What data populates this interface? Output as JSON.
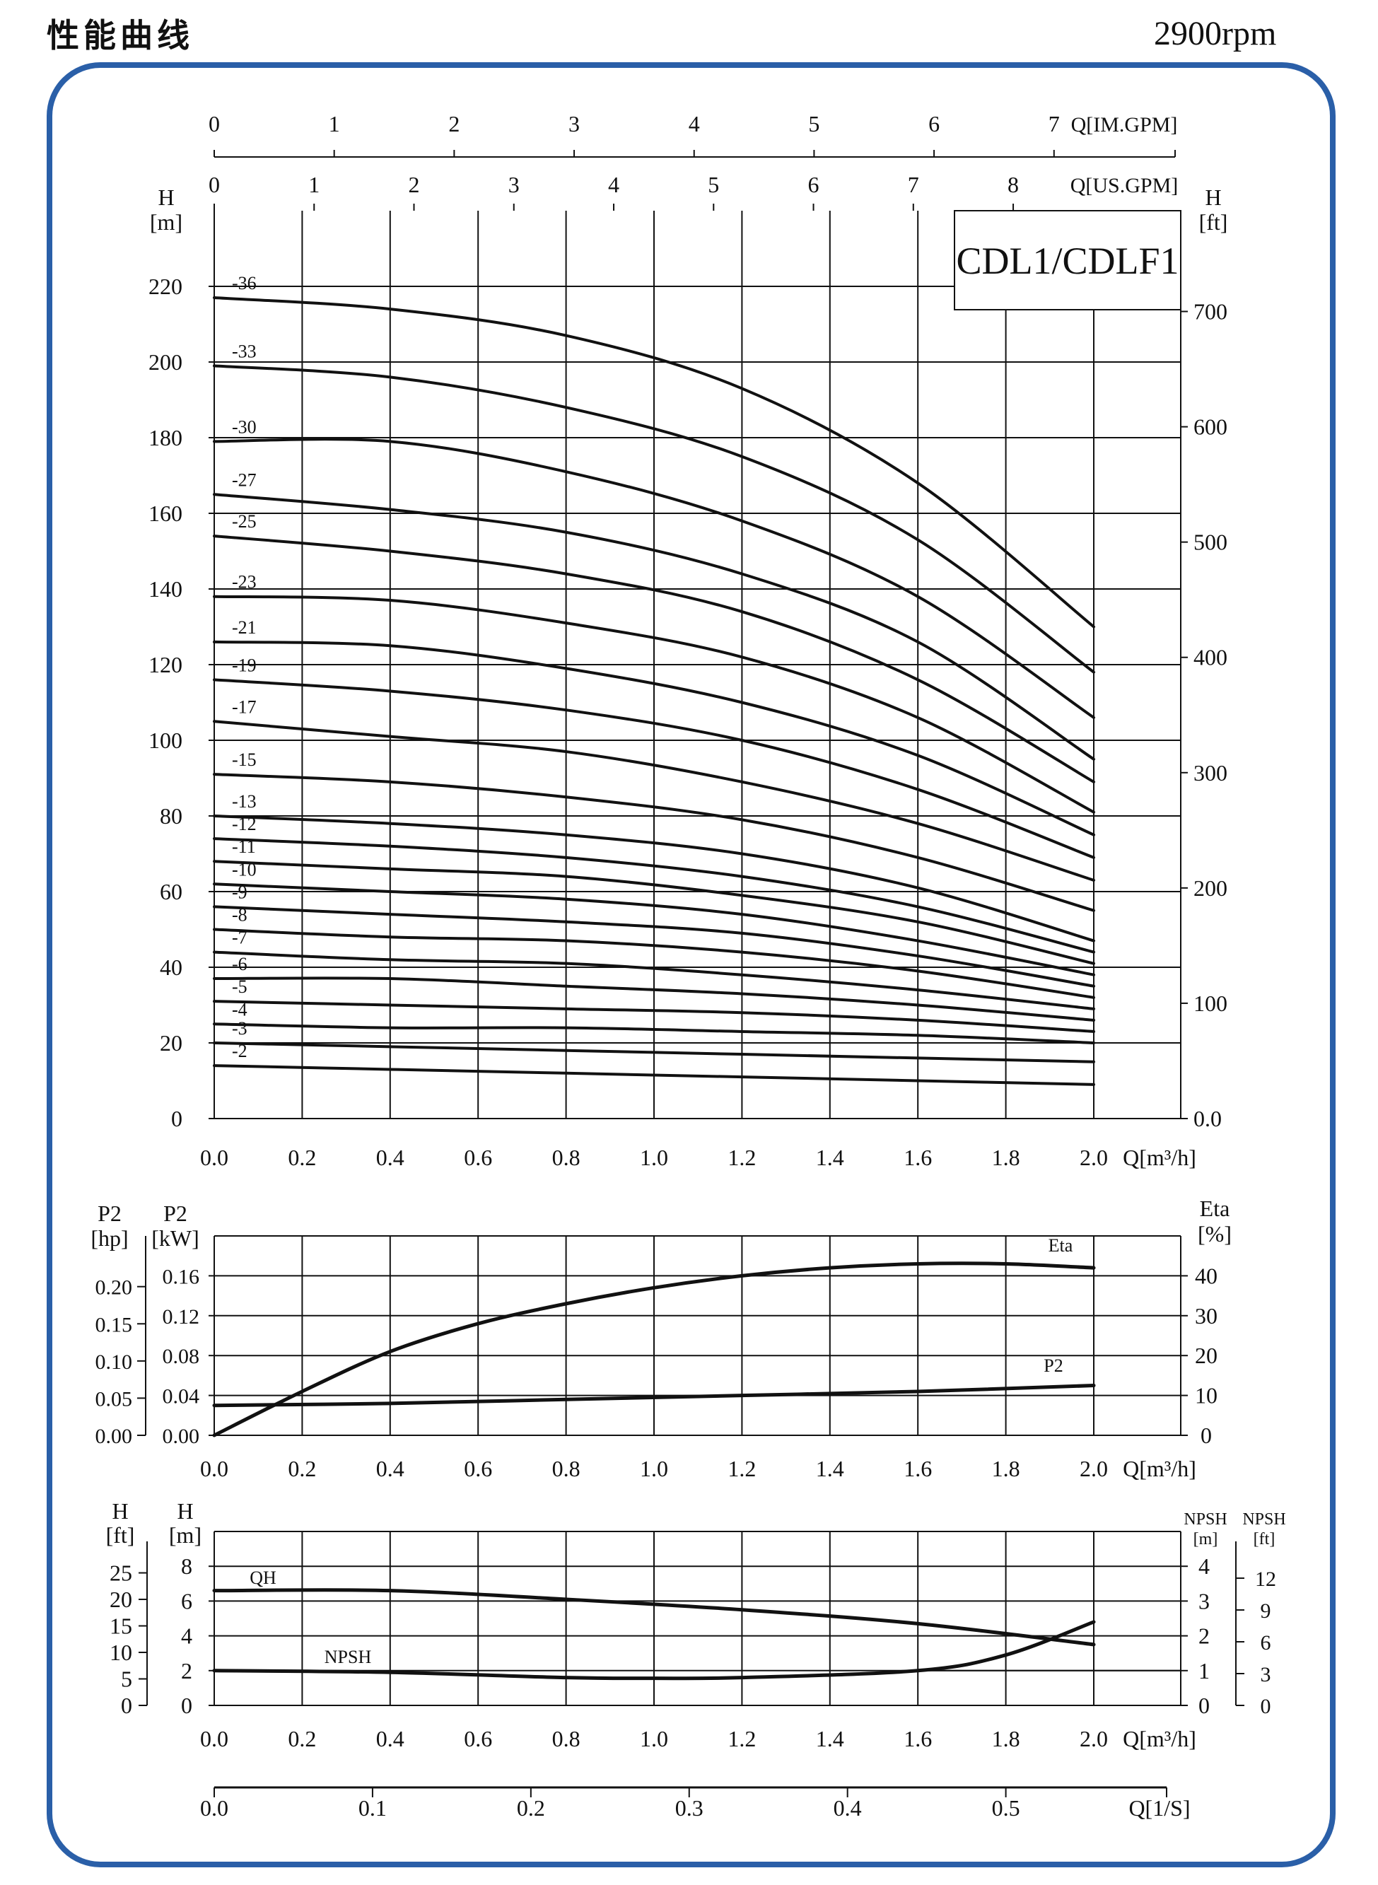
{
  "header": {
    "title": "性能曲线",
    "speed": "2900rpm"
  },
  "chart_data": [
    {
      "type": "line",
      "model": "CDL1/CDLF1",
      "x_units": "Q[m³/h]",
      "xlim": [
        0,
        2.0
      ],
      "x_ticks": [
        "0.0",
        "0.2",
        "0.4",
        "0.6",
        "0.8",
        "1.0",
        "1.2",
        "1.4",
        "1.6",
        "1.8",
        "2.0"
      ],
      "ylabel_left": "H [m]",
      "ylabel_right": "H [ft]",
      "ylim": [
        0,
        240
      ],
      "y_ticks_m": [
        "0",
        "20",
        "40",
        "60",
        "80",
        "100",
        "120",
        "140",
        "160",
        "180",
        "200",
        "220"
      ],
      "y_ticks_ft": [
        "0.0",
        "100",
        "200",
        "300",
        "400",
        "500",
        "600",
        "700"
      ],
      "top_axis_imp": {
        "label": "Q[IM.GPM]",
        "ticks": [
          "0",
          "1",
          "2",
          "3",
          "4",
          "5",
          "6",
          "7"
        ]
      },
      "top_axis_us": {
        "label": "Q[US.GPM]",
        "ticks": [
          "0",
          "1",
          "2",
          "3",
          "4",
          "5",
          "6",
          "7",
          "8"
        ]
      },
      "x": [
        0,
        0.4,
        0.8,
        1.2,
        1.6,
        2.0
      ],
      "series": [
        {
          "name": "-36",
          "values": [
            217,
            214,
            207,
            193,
            168,
            130
          ]
        },
        {
          "name": "-33",
          "values": [
            199,
            196,
            188,
            175,
            153,
            118
          ]
        },
        {
          "name": "-30",
          "values": [
            179,
            179,
            171,
            158,
            138,
            106
          ]
        },
        {
          "name": "-27",
          "values": [
            165,
            161,
            155,
            144,
            126,
            95
          ]
        },
        {
          "name": "-25",
          "values": [
            154,
            150,
            144,
            134,
            116,
            89
          ]
        },
        {
          "name": "-23",
          "values": [
            138,
            137,
            131,
            122,
            106,
            81
          ]
        },
        {
          "name": "-21",
          "values": [
            126,
            125,
            119,
            110,
            96,
            75
          ]
        },
        {
          "name": "-19",
          "values": [
            116,
            113,
            108,
            100,
            87,
            69
          ]
        },
        {
          "name": "-17",
          "values": [
            105,
            101,
            97,
            89,
            78,
            63
          ]
        },
        {
          "name": "-15",
          "values": [
            91,
            89,
            85,
            79,
            69,
            55
          ]
        },
        {
          "name": "-13",
          "values": [
            80,
            78,
            75,
            70,
            61,
            47
          ]
        },
        {
          "name": "-12",
          "values": [
            74,
            72,
            69,
            64,
            56,
            44
          ]
        },
        {
          "name": "-11",
          "values": [
            68,
            66,
            64,
            59,
            52,
            41
          ]
        },
        {
          "name": "-10",
          "values": [
            62,
            60,
            58,
            54,
            47,
            38
          ]
        },
        {
          "name": "-9",
          "values": [
            56,
            54,
            52,
            49,
            43,
            35
          ]
        },
        {
          "name": "-8",
          "values": [
            50,
            48,
            47,
            44,
            39,
            32
          ]
        },
        {
          "name": "-7",
          "values": [
            44,
            42,
            41,
            38,
            34,
            29
          ]
        },
        {
          "name": "-6",
          "values": [
            37,
            37,
            35,
            33,
            30,
            26
          ]
        },
        {
          "name": "-5",
          "values": [
            31,
            30,
            29,
            28,
            26,
            23
          ]
        },
        {
          "name": "-4",
          "values": [
            25,
            24,
            24,
            23,
            22,
            20
          ]
        },
        {
          "name": "-3",
          "values": [
            20,
            19,
            18,
            17,
            16,
            15
          ]
        },
        {
          "name": "-2",
          "values": [
            14,
            13,
            12,
            11,
            10,
            9
          ]
        }
      ]
    },
    {
      "type": "line",
      "x_units": "Q[m³/h]",
      "xlim": [
        0,
        2.0
      ],
      "x_ticks": [
        "0.0",
        "0.2",
        "0.4",
        "0.6",
        "0.8",
        "1.0",
        "1.2",
        "1.4",
        "1.6",
        "1.8",
        "2.0"
      ],
      "ylabel_hp": "P2 [hp]",
      "ylabel_kw": "P2 [kW]",
      "ylabel_right": "Eta [%]",
      "kw_ticks": [
        "0.00",
        "0.04",
        "0.08",
        "0.12",
        "0.16"
      ],
      "hp_ticks": [
        "0.00",
        "0.05",
        "0.10",
        "0.15",
        "0.20"
      ],
      "eta_ticks": [
        "0",
        "10",
        "20",
        "30",
        "40"
      ],
      "ylim_kw": [
        0,
        0.2
      ],
      "ylim_eta": [
        0,
        50
      ],
      "eta": {
        "name": "Eta",
        "x": [
          0,
          0.2,
          0.4,
          0.6,
          0.8,
          1.0,
          1.2,
          1.4,
          1.6,
          1.8,
          2.0
        ],
        "values": [
          0,
          11,
          21,
          28,
          33,
          37,
          40,
          42,
          43,
          43,
          42
        ]
      },
      "p2": {
        "name": "P2",
        "x": [
          0,
          0.4,
          0.8,
          1.2,
          1.6,
          2.0
        ],
        "values": [
          0.03,
          0.032,
          0.036,
          0.04,
          0.044,
          0.05
        ]
      }
    },
    {
      "type": "line",
      "x_units": "Q[m³/h]",
      "xlim": [
        0,
        2.0
      ],
      "x_ticks": [
        "0.0",
        "0.2",
        "0.4",
        "0.6",
        "0.8",
        "1.0",
        "1.2",
        "1.4",
        "1.6",
        "1.8",
        "2.0"
      ],
      "ylabel_ft": "H [ft]",
      "ylabel_m": "H [m]",
      "ylabel_npsh_m": "NPSH [m]",
      "ylabel_npsh_ft": "NPSH [ft]",
      "ft_ticks": [
        "0",
        "5",
        "10",
        "15",
        "20",
        "25"
      ],
      "m_ticks": [
        "0",
        "2",
        "4",
        "6",
        "8"
      ],
      "npsh_m_ticks": [
        "0",
        "1",
        "2",
        "3",
        "4"
      ],
      "npsh_ft_ticks": [
        "0",
        "3",
        "6",
        "9",
        "12"
      ],
      "ylim_m": [
        0,
        10
      ],
      "qh": {
        "name": "QH",
        "x": [
          0,
          0.4,
          0.8,
          1.2,
          1.6,
          2.0
        ],
        "values": [
          6.6,
          6.6,
          6.1,
          5.5,
          4.7,
          3.5
        ]
      },
      "npsh": {
        "name": "NPSH",
        "x": [
          0,
          0.4,
          0.8,
          1.0,
          1.2,
          1.6,
          1.8,
          2.0
        ],
        "values": [
          1.0,
          0.95,
          0.8,
          0.78,
          0.8,
          1.0,
          1.45,
          2.4
        ]
      }
    },
    {
      "type": "axis",
      "label": "Q[1/S]",
      "ticks": [
        "0.0",
        "0.1",
        "0.2",
        "0.3",
        "0.4",
        "0.5"
      ]
    }
  ]
}
